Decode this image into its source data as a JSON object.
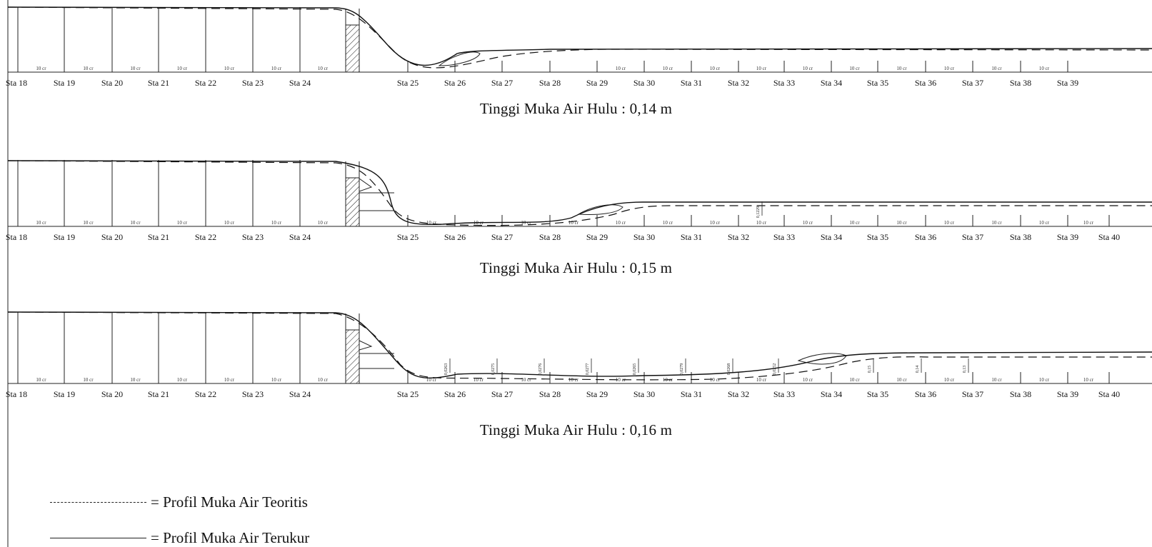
{
  "profiles": [
    {
      "caption": "Tinggi Muka Air Hulu : 0,14 m",
      "stations": [
        "Sta 18",
        "Sta 19",
        "Sta 20",
        "Sta 21",
        "Sta 22",
        "Sta 23",
        "Sta 24",
        "Sta 25",
        "Sta 26",
        "Sta 27",
        "Sta 28",
        "Sta 29",
        "Sta 30",
        "Sta 31",
        "Sta 32",
        "Sta 33",
        "Sta 34",
        "Sta 35",
        "Sta 36",
        "Sta 37",
        "Sta 38",
        "Sta 39"
      ],
      "spacing_label": "10 cr",
      "depth_labels": []
    },
    {
      "caption": "Tinggi Muka Air Hulu : 0,15 m",
      "stations": [
        "Sta 18",
        "Sta 19",
        "Sta 20",
        "Sta 21",
        "Sta 22",
        "Sta 23",
        "Sta 24",
        "Sta 25",
        "Sta 26",
        "Sta 27",
        "Sta 28",
        "Sta 29",
        "Sta 30",
        "Sta 31",
        "Sta 32",
        "Sta 33",
        "Sta 34",
        "Sta 35",
        "Sta 36",
        "Sta 37",
        "Sta 38",
        "Sta 39",
        "Sta 40"
      ],
      "spacing_label": "10 cr",
      "depth_labels": [
        "0,1229"
      ]
    },
    {
      "caption": "Tinggi Muka Air Hulu : 0,16 m",
      "stations": [
        "Sta 18",
        "Sta 19",
        "Sta 20",
        "Sta 21",
        "Sta 22",
        "Sta 23",
        "Sta 24",
        "Sta 25",
        "Sta 26",
        "Sta 27",
        "Sta 28",
        "Sta 29",
        "Sta 30",
        "Sta 31",
        "Sta 32",
        "Sta 33",
        "Sta 34",
        "Sta 35",
        "Sta 36",
        "Sta 37",
        "Sta 38",
        "Sta 39",
        "Sta 40"
      ],
      "spacing_label": "10 cr",
      "depth_labels": [
        "0,0263",
        "0,0275",
        "0,0276",
        "0,0277",
        "0,0265",
        "0,0279",
        "0,0268",
        "0,0252",
        "0,15",
        "0,14",
        "0,13"
      ]
    }
  ],
  "legend": {
    "theoretical": "= Profil Muka Air Teoritis",
    "measured": "= Profil Muka Air Terukur"
  }
}
